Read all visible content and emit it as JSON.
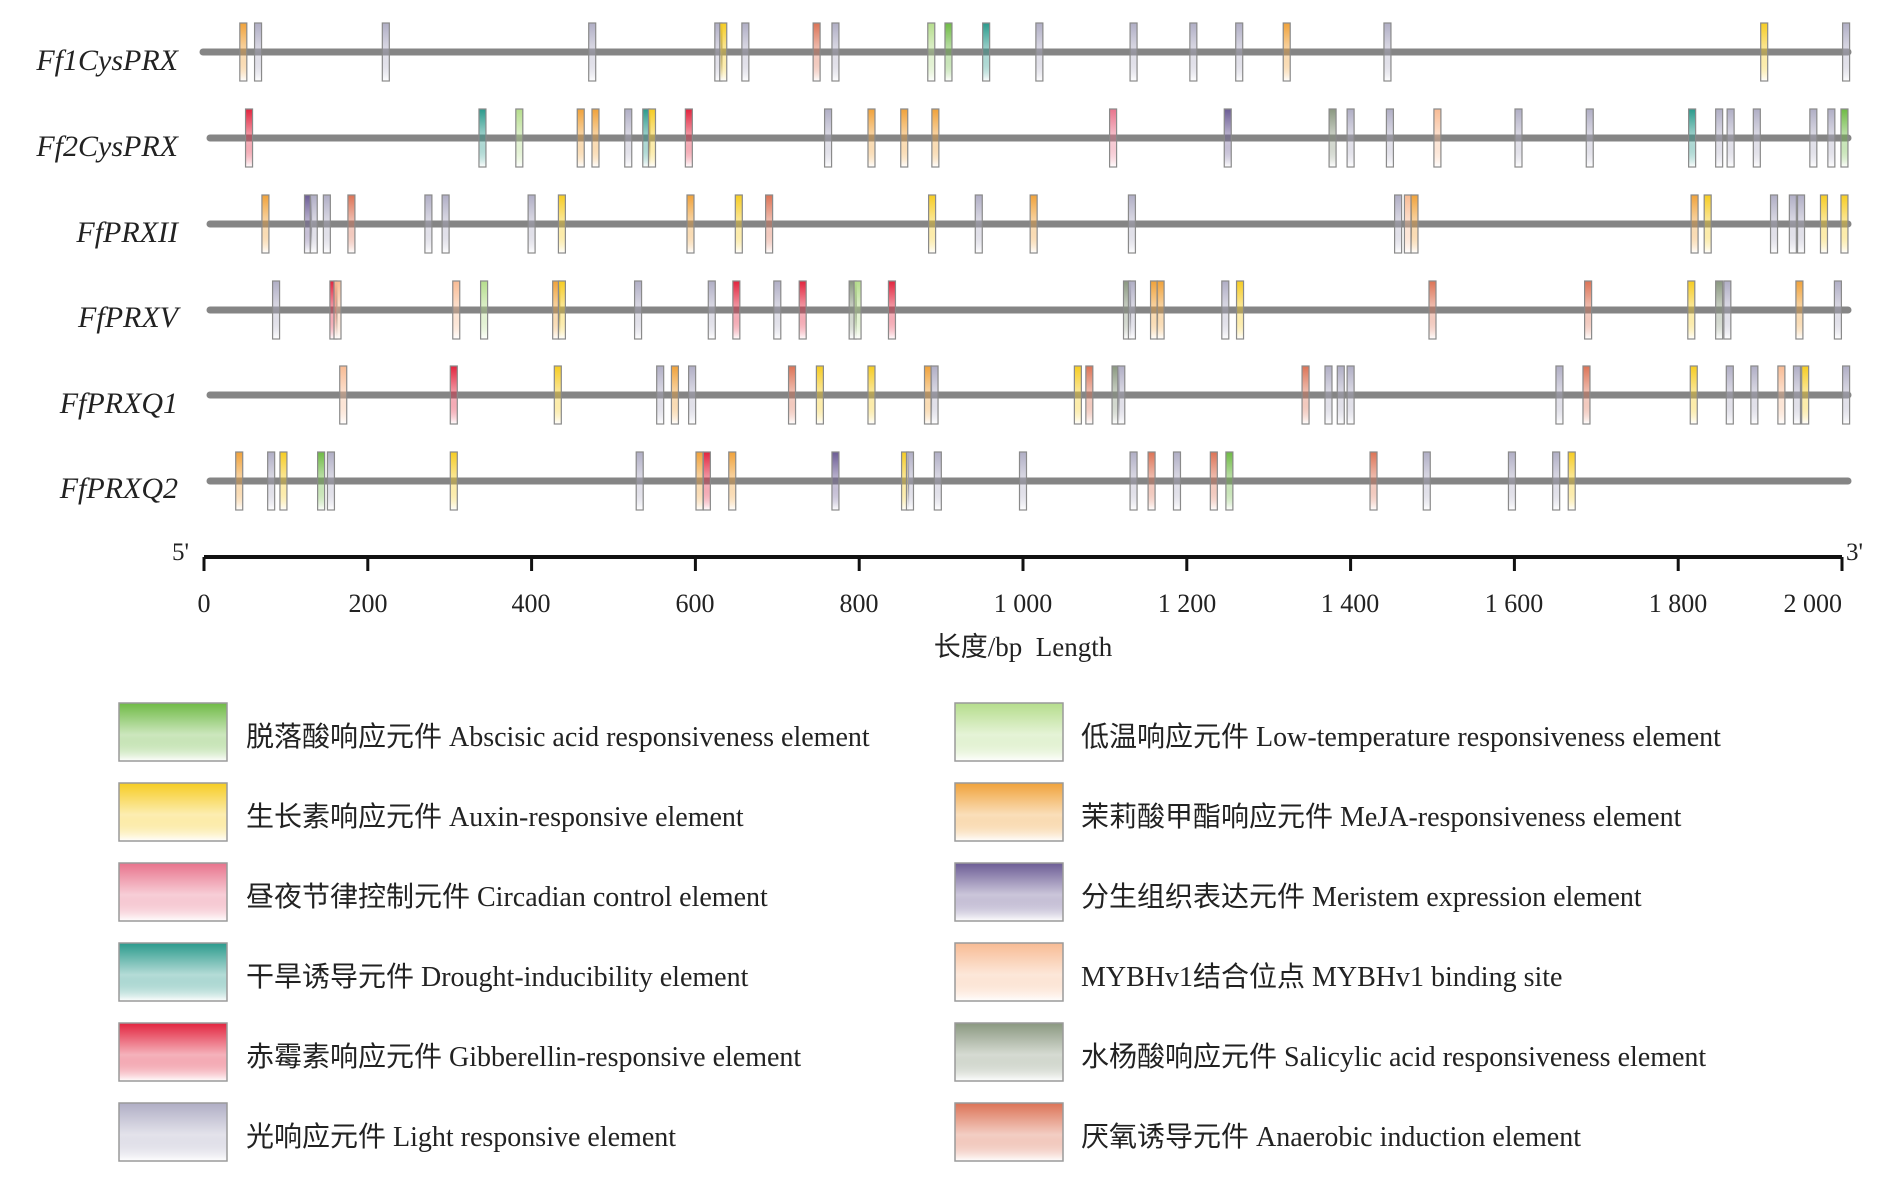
{
  "figure": {
    "genes": [
      "Ff1CysPRX",
      "Ff2CysPRX",
      "FfPRXII",
      "FfPRXV",
      "FfPRXQ1",
      "FfPRXQ2"
    ],
    "axis": {
      "ticks": [
        "0",
        "200",
        "400",
        "600",
        "800",
        "1 000",
        "1 200",
        "1 400",
        "1 600",
        "1 800",
        "2 000"
      ],
      "title": "长度/bp  Length",
      "start_label": "5'",
      "end_label": "3'"
    }
  },
  "chart_data": {
    "type": "diagram",
    "xlim": [
      0,
      2000
    ],
    "element_types": {
      "aba": {
        "label": "脱落酸响应元件 Abscisic acid responsiveness element",
        "color": "#6fba45"
      },
      "ltr": {
        "label": "低温响应元件 Low-temperature responsiveness element",
        "color": "#b5dd8c"
      },
      "aux": {
        "label": "生长素响应元件 Auxin-responsive element",
        "color": "#f6cc22"
      },
      "meja": {
        "label": "茉莉酸甲酯响应元件 MeJA-responsiveness element",
        "color": "#f0a23a"
      },
      "circ": {
        "label": "昼夜节律控制元件 Circadian control element",
        "color": "#e8738c"
      },
      "meri": {
        "label": "分生组织表达元件 Meristem expression element",
        "color": "#6c5c95"
      },
      "drought": {
        "label": "干旱诱导元件 Drought-inducibility element",
        "color": "#2a9a8c"
      },
      "myb": {
        "label": "MYBHv1结合位点 MYBHv1 binding site",
        "color": "#f8bb94"
      },
      "ga": {
        "label": "赤霉素响应元件 Gibberellin-responsive element",
        "color": "#e2243e"
      },
      "sa": {
        "label": "水杨酸响应元件 Salicylic acid responsiveness element",
        "color": "#8a9880"
      },
      "light": {
        "label": "光响应元件 Light responsive element",
        "color": "#b0aec5"
      },
      "anaer": {
        "label": "厌氧诱导元件 Anaerobic induction element",
        "color": "#dc7356"
      }
    },
    "legend_left": [
      "aba",
      "aux",
      "circ",
      "drought",
      "ga",
      "light"
    ],
    "legend_right": [
      "ltr",
      "meja",
      "meri",
      "myb",
      "sa",
      "anaer"
    ],
    "tracks": [
      {
        "gene": "Ff1CysPRX",
        "elements": [
          {
            "pos": 48,
            "type": "meja"
          },
          {
            "pos": 66,
            "type": "light"
          },
          {
            "pos": 222,
            "type": "light"
          },
          {
            "pos": 474,
            "type": "light"
          },
          {
            "pos": 628,
            "type": "light"
          },
          {
            "pos": 634,
            "type": "aux"
          },
          {
            "pos": 661,
            "type": "light"
          },
          {
            "pos": 748,
            "type": "anaer"
          },
          {
            "pos": 771,
            "type": "light"
          },
          {
            "pos": 888,
            "type": "ltr"
          },
          {
            "pos": 909,
            "type": "aba"
          },
          {
            "pos": 955,
            "type": "drought"
          },
          {
            "pos": 1020,
            "type": "light"
          },
          {
            "pos": 1135,
            "type": "light"
          },
          {
            "pos": 1208,
            "type": "light"
          },
          {
            "pos": 1264,
            "type": "light"
          },
          {
            "pos": 1322,
            "type": "meja"
          },
          {
            "pos": 1445,
            "type": "light"
          },
          {
            "pos": 1905,
            "type": "aux"
          },
          {
            "pos": 2005,
            "type": "light"
          }
        ]
      },
      {
        "gene": "Ff2CysPRX",
        "elements": [
          {
            "pos": 55,
            "type": "ga"
          },
          {
            "pos": 340,
            "type": "drought"
          },
          {
            "pos": 385,
            "type": "ltr"
          },
          {
            "pos": 460,
            "type": "meja"
          },
          {
            "pos": 478,
            "type": "meja"
          },
          {
            "pos": 518,
            "type": "light"
          },
          {
            "pos": 540,
            "type": "drought"
          },
          {
            "pos": 547,
            "type": "aux"
          },
          {
            "pos": 592,
            "type": "ga"
          },
          {
            "pos": 762,
            "type": "light"
          },
          {
            "pos": 815,
            "type": "meja"
          },
          {
            "pos": 855,
            "type": "meja"
          },
          {
            "pos": 893,
            "type": "meja"
          },
          {
            "pos": 1110,
            "type": "circ"
          },
          {
            "pos": 1250,
            "type": "meri"
          },
          {
            "pos": 1378,
            "type": "sa"
          },
          {
            "pos": 1400,
            "type": "light"
          },
          {
            "pos": 1448,
            "type": "light"
          },
          {
            "pos": 1506,
            "type": "myb"
          },
          {
            "pos": 1605,
            "type": "light"
          },
          {
            "pos": 1692,
            "type": "light"
          },
          {
            "pos": 1817,
            "type": "drought"
          },
          {
            "pos": 1850,
            "type": "light"
          },
          {
            "pos": 1864,
            "type": "light"
          },
          {
            "pos": 1896,
            "type": "light"
          },
          {
            "pos": 1965,
            "type": "light"
          },
          {
            "pos": 1987,
            "type": "light"
          },
          {
            "pos": 2003,
            "type": "aba"
          }
        ]
      },
      {
        "gene": "FfPRXII",
        "elements": [
          {
            "pos": 75,
            "type": "meja"
          },
          {
            "pos": 127,
            "type": "meri"
          },
          {
            "pos": 134,
            "type": "light"
          },
          {
            "pos": 150,
            "type": "light"
          },
          {
            "pos": 180,
            "type": "anaer"
          },
          {
            "pos": 274,
            "type": "light"
          },
          {
            "pos": 295,
            "type": "light"
          },
          {
            "pos": 400,
            "type": "light"
          },
          {
            "pos": 437,
            "type": "aux"
          },
          {
            "pos": 594,
            "type": "meja"
          },
          {
            "pos": 653,
            "type": "aux"
          },
          {
            "pos": 690,
            "type": "anaer"
          },
          {
            "pos": 889,
            "type": "aux"
          },
          {
            "pos": 946,
            "type": "light"
          },
          {
            "pos": 1013,
            "type": "meja"
          },
          {
            "pos": 1133,
            "type": "light"
          },
          {
            "pos": 1458,
            "type": "light"
          },
          {
            "pos": 1470,
            "type": "myb"
          },
          {
            "pos": 1478,
            "type": "meja"
          },
          {
            "pos": 1820,
            "type": "meja"
          },
          {
            "pos": 1836,
            "type": "aux"
          },
          {
            "pos": 1917,
            "type": "light"
          },
          {
            "pos": 1940,
            "type": "light"
          },
          {
            "pos": 1950,
            "type": "light"
          },
          {
            "pos": 1978,
            "type": "aux"
          },
          {
            "pos": 2003,
            "type": "aux"
          }
        ]
      },
      {
        "gene": "FfPRXV",
        "elements": [
          {
            "pos": 88,
            "type": "light"
          },
          {
            "pos": 158,
            "type": "ga"
          },
          {
            "pos": 163,
            "type": "myb"
          },
          {
            "pos": 308,
            "type": "myb"
          },
          {
            "pos": 342,
            "type": "ltr"
          },
          {
            "pos": 430,
            "type": "meja"
          },
          {
            "pos": 437,
            "type": "aux"
          },
          {
            "pos": 530,
            "type": "light"
          },
          {
            "pos": 620,
            "type": "light"
          },
          {
            "pos": 650,
            "type": "ga"
          },
          {
            "pos": 700,
            "type": "light"
          },
          {
            "pos": 731,
            "type": "ga"
          },
          {
            "pos": 792,
            "type": "sa"
          },
          {
            "pos": 798,
            "type": "ltr"
          },
          {
            "pos": 840,
            "type": "ga"
          },
          {
            "pos": 1127,
            "type": "sa"
          },
          {
            "pos": 1133,
            "type": "light"
          },
          {
            "pos": 1160,
            "type": "meja"
          },
          {
            "pos": 1168,
            "type": "meja"
          },
          {
            "pos": 1247,
            "type": "light"
          },
          {
            "pos": 1265,
            "type": "aux"
          },
          {
            "pos": 1500,
            "type": "anaer"
          },
          {
            "pos": 1690,
            "type": "anaer"
          },
          {
            "pos": 1816,
            "type": "aux"
          },
          {
            "pos": 1850,
            "type": "sa"
          },
          {
            "pos": 1860,
            "type": "light"
          },
          {
            "pos": 1948,
            "type": "meja"
          },
          {
            "pos": 1995,
            "type": "light"
          }
        ]
      },
      {
        "gene": "FfPRXQ1",
        "elements": [
          {
            "pos": 170,
            "type": "myb"
          },
          {
            "pos": 305,
            "type": "ga"
          },
          {
            "pos": 432,
            "type": "aux"
          },
          {
            "pos": 557,
            "type": "light"
          },
          {
            "pos": 575,
            "type": "meja"
          },
          {
            "pos": 596,
            "type": "light"
          },
          {
            "pos": 718,
            "type": "anaer"
          },
          {
            "pos": 752,
            "type": "aux"
          },
          {
            "pos": 815,
            "type": "aux"
          },
          {
            "pos": 884,
            "type": "meja"
          },
          {
            "pos": 892,
            "type": "light"
          },
          {
            "pos": 1067,
            "type": "aux"
          },
          {
            "pos": 1081,
            "type": "anaer"
          },
          {
            "pos": 1113,
            "type": "sa"
          },
          {
            "pos": 1120,
            "type": "light"
          },
          {
            "pos": 1345,
            "type": "anaer"
          },
          {
            "pos": 1373,
            "type": "light"
          },
          {
            "pos": 1388,
            "type": "light"
          },
          {
            "pos": 1400,
            "type": "light"
          },
          {
            "pos": 1655,
            "type": "light"
          },
          {
            "pos": 1688,
            "type": "anaer"
          },
          {
            "pos": 1819,
            "type": "aux"
          },
          {
            "pos": 1863,
            "type": "light"
          },
          {
            "pos": 1893,
            "type": "light"
          },
          {
            "pos": 1926,
            "type": "myb"
          },
          {
            "pos": 1945,
            "type": "light"
          },
          {
            "pos": 1955,
            "type": "aux"
          },
          {
            "pos": 2005,
            "type": "light"
          }
        ]
      },
      {
        "gene": "FfPRXQ2",
        "elements": [
          {
            "pos": 43,
            "type": "meja"
          },
          {
            "pos": 82,
            "type": "light"
          },
          {
            "pos": 97,
            "type": "aux"
          },
          {
            "pos": 143,
            "type": "aba"
          },
          {
            "pos": 155,
            "type": "light"
          },
          {
            "pos": 305,
            "type": "aux"
          },
          {
            "pos": 532,
            "type": "light"
          },
          {
            "pos": 605,
            "type": "meja"
          },
          {
            "pos": 614,
            "type": "ga"
          },
          {
            "pos": 645,
            "type": "meja"
          },
          {
            "pos": 771,
            "type": "meri"
          },
          {
            "pos": 856,
            "type": "aux"
          },
          {
            "pos": 862,
            "type": "light"
          },
          {
            "pos": 896,
            "type": "light"
          },
          {
            "pos": 1000,
            "type": "light"
          },
          {
            "pos": 1135,
            "type": "light"
          },
          {
            "pos": 1157,
            "type": "anaer"
          },
          {
            "pos": 1188,
            "type": "light"
          },
          {
            "pos": 1233,
            "type": "anaer"
          },
          {
            "pos": 1252,
            "type": "aba"
          },
          {
            "pos": 1428,
            "type": "anaer"
          },
          {
            "pos": 1493,
            "type": "light"
          },
          {
            "pos": 1597,
            "type": "light"
          },
          {
            "pos": 1651,
            "type": "light"
          },
          {
            "pos": 1670,
            "type": "aux"
          }
        ]
      }
    ]
  }
}
